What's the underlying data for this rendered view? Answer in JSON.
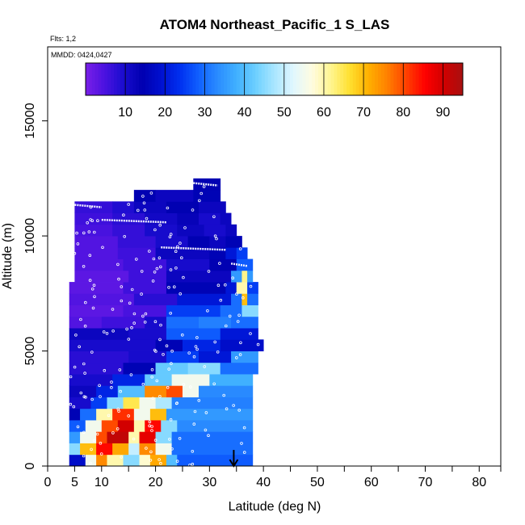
{
  "chart_data": {
    "type": "heatmap",
    "title": "ATOM4 Northeast_Pacific_1 S_LAS",
    "annotations": [
      "Flts: 1,2",
      "MMDD: 0424,0427"
    ],
    "xlabel": "Latitude (deg N)",
    "ylabel": "Altitude (m)",
    "xlim": [
      0,
      84
    ],
    "ylim": [
      0,
      17500
    ],
    "x_ticks": [
      0,
      5,
      10,
      20,
      30,
      40,
      50,
      60,
      70,
      80
    ],
    "x_minor_ticks": [
      15,
      25,
      35,
      45,
      55,
      65,
      75,
      84
    ],
    "y_ticks": [
      0,
      5000,
      10000,
      15000
    ],
    "colorbar": {
      "range": [
        0,
        95
      ],
      "ticks": [
        10,
        20,
        30,
        40,
        50,
        60,
        70,
        80,
        90
      ],
      "colors": [
        "#7a1fe8",
        "#4b12e0",
        "#1a0ccf",
        "#0000b0",
        "#0010d0",
        "#0030f0",
        "#1060ff",
        "#2a8cff",
        "#40b0ff",
        "#6ccfff",
        "#a8e6ff",
        "#e0f6ff",
        "#fffce0",
        "#fff590",
        "#ffe030",
        "#ffb000",
        "#ff8000",
        "#ff4000",
        "#ff0000",
        "#d00000",
        "#a81010"
      ]
    },
    "layers": [
      {
        "alt": [
          0,
          500
        ],
        "cells": [
          [
            4,
            7,
            18
          ],
          [
            7,
            9,
            55
          ],
          [
            9,
            11,
            75
          ],
          [
            11,
            14,
            60
          ],
          [
            14,
            17,
            45
          ],
          [
            17,
            19,
            58
          ],
          [
            19,
            22,
            72
          ],
          [
            22,
            24,
            40
          ],
          [
            24,
            38,
            28
          ]
        ]
      },
      {
        "alt": [
          500,
          1000
        ],
        "cells": [
          [
            4,
            6,
            45
          ],
          [
            6,
            9,
            70
          ],
          [
            9,
            12,
            85
          ],
          [
            12,
            15,
            72
          ],
          [
            15,
            17,
            50
          ],
          [
            17,
            20,
            75
          ],
          [
            20,
            23,
            55
          ],
          [
            23,
            38,
            30
          ]
        ]
      },
      {
        "alt": [
          1000,
          1500
        ],
        "cells": [
          [
            4,
            6,
            35
          ],
          [
            6,
            9,
            55
          ],
          [
            9,
            11,
            80
          ],
          [
            11,
            15,
            92
          ],
          [
            15,
            17,
            60
          ],
          [
            17,
            20,
            88
          ],
          [
            20,
            23,
            45
          ],
          [
            23,
            38,
            30
          ]
        ]
      },
      {
        "alt": [
          1500,
          2000
        ],
        "cells": [
          [
            4,
            7,
            28
          ],
          [
            7,
            10,
            55
          ],
          [
            10,
            13,
            80
          ],
          [
            13,
            16,
            90
          ],
          [
            16,
            18,
            60
          ],
          [
            18,
            21,
            85
          ],
          [
            21,
            24,
            45
          ],
          [
            24,
            38,
            33
          ]
        ]
      },
      {
        "alt": [
          2000,
          2500
        ],
        "cells": [
          [
            4,
            6,
            15
          ],
          [
            6,
            9,
            30
          ],
          [
            9,
            12,
            60
          ],
          [
            12,
            16,
            82
          ],
          [
            16,
            19,
            55
          ],
          [
            19,
            22,
            70
          ],
          [
            22,
            38,
            35
          ]
        ]
      },
      {
        "alt": [
          2500,
          3000
        ],
        "cells": [
          [
            4,
            8,
            10
          ],
          [
            8,
            11,
            25
          ],
          [
            11,
            14,
            45
          ],
          [
            14,
            17,
            65
          ],
          [
            17,
            20,
            55
          ],
          [
            20,
            23,
            48
          ],
          [
            23,
            38,
            32
          ]
        ]
      },
      {
        "alt": [
          3000,
          3500
        ],
        "cells": [
          [
            4,
            9,
            12
          ],
          [
            9,
            13,
            22
          ],
          [
            13,
            18,
            40
          ],
          [
            18,
            22,
            75
          ],
          [
            22,
            25,
            80
          ],
          [
            25,
            28,
            55
          ],
          [
            28,
            38,
            33
          ]
        ]
      },
      {
        "alt": [
          3500,
          4000
        ],
        "cells": [
          [
            4,
            12,
            10
          ],
          [
            12,
            18,
            22
          ],
          [
            18,
            23,
            42
          ],
          [
            23,
            30,
            55
          ],
          [
            30,
            38,
            38
          ]
        ]
      },
      {
        "alt": [
          4000,
          4500
        ],
        "cells": [
          [
            4,
            14,
            8
          ],
          [
            14,
            20,
            15
          ],
          [
            20,
            26,
            42
          ],
          [
            26,
            32,
            45
          ],
          [
            32,
            39,
            30
          ]
        ]
      },
      {
        "alt": [
          4500,
          5000
        ],
        "cells": [
          [
            4,
            15,
            8
          ],
          [
            15,
            22,
            10
          ],
          [
            22,
            28,
            25
          ],
          [
            28,
            34,
            20
          ],
          [
            34,
            39,
            35
          ]
        ]
      },
      {
        "alt": [
          5000,
          5500
        ],
        "cells": [
          [
            4,
            20,
            10
          ],
          [
            20,
            25,
            15
          ],
          [
            25,
            32,
            22
          ],
          [
            32,
            40,
            18
          ]
        ]
      },
      {
        "alt": [
          5500,
          6000
        ],
        "cells": [
          [
            4,
            15,
            12
          ],
          [
            15,
            22,
            10
          ],
          [
            22,
            32,
            28
          ],
          [
            32,
            39,
            20
          ]
        ]
      },
      {
        "alt": [
          6000,
          6500
        ],
        "cells": [
          [
            4,
            10,
            4
          ],
          [
            10,
            18,
            6
          ],
          [
            18,
            22,
            10
          ],
          [
            22,
            28,
            30
          ],
          [
            28,
            34,
            32
          ],
          [
            34,
            39,
            30
          ]
        ]
      },
      {
        "alt": [
          6500,
          7000
        ],
        "cells": [
          [
            4,
            14,
            3
          ],
          [
            14,
            22,
            5
          ],
          [
            22,
            32,
            25
          ],
          [
            32,
            36,
            30
          ],
          [
            36,
            39,
            45
          ]
        ]
      },
      {
        "alt": [
          7000,
          7500
        ],
        "cells": [
          [
            4,
            16,
            4
          ],
          [
            16,
            24,
            8
          ],
          [
            24,
            34,
            20
          ],
          [
            34,
            36,
            30
          ],
          [
            36,
            37,
            70
          ],
          [
            37,
            39,
            30
          ]
        ]
      },
      {
        "alt": [
          7500,
          8000
        ],
        "cells": [
          [
            4,
            14,
            3
          ],
          [
            14,
            22,
            6
          ],
          [
            22,
            33,
            15
          ],
          [
            33,
            35,
            20
          ],
          [
            35,
            37,
            60
          ],
          [
            37,
            39,
            25
          ]
        ]
      },
      {
        "alt": [
          8000,
          8500
        ],
        "cells": [
          [
            5,
            15,
            3
          ],
          [
            15,
            22,
            6
          ],
          [
            22,
            34,
            12
          ],
          [
            34,
            36,
            35
          ],
          [
            36,
            37,
            62
          ],
          [
            37,
            38,
            35
          ]
        ]
      },
      {
        "alt": [
          8500,
          9000
        ],
        "cells": [
          [
            5,
            14,
            4
          ],
          [
            14,
            22,
            6
          ],
          [
            22,
            30,
            10
          ],
          [
            30,
            35,
            14
          ],
          [
            35,
            38,
            28
          ]
        ]
      },
      {
        "alt": [
          9000,
          9500
        ],
        "cells": [
          [
            5,
            13,
            4
          ],
          [
            13,
            20,
            6
          ],
          [
            20,
            30,
            12
          ],
          [
            30,
            33,
            15
          ],
          [
            33,
            35,
            20
          ],
          [
            35,
            37,
            25
          ]
        ]
      },
      {
        "alt": [
          9500,
          10000
        ],
        "cells": [
          [
            5,
            13,
            4
          ],
          [
            13,
            20,
            7
          ],
          [
            20,
            26,
            10
          ],
          [
            26,
            30,
            14
          ],
          [
            30,
            33,
            12
          ],
          [
            33,
            36,
            15
          ]
        ]
      },
      {
        "alt": [
          10000,
          10500
        ],
        "cells": [
          [
            5,
            12,
            5
          ],
          [
            12,
            18,
            7
          ],
          [
            18,
            24,
            10
          ],
          [
            24,
            29,
            12
          ],
          [
            29,
            33,
            10
          ],
          [
            33,
            35,
            12
          ]
        ]
      },
      {
        "alt": [
          10500,
          11000
        ],
        "cells": [
          [
            5,
            12,
            6
          ],
          [
            12,
            18,
            8
          ],
          [
            18,
            24,
            11
          ],
          [
            24,
            28,
            13
          ],
          [
            28,
            32,
            10
          ],
          [
            32,
            34,
            12
          ]
        ]
      },
      {
        "alt": [
          11000,
          11500
        ],
        "cells": [
          [
            5,
            12,
            7
          ],
          [
            12,
            16,
            9
          ],
          [
            16,
            22,
            12
          ],
          [
            22,
            28,
            14
          ],
          [
            28,
            33,
            12
          ]
        ]
      },
      {
        "alt": [
          11500,
          12000
        ],
        "cells": [
          [
            16,
            20,
            14
          ],
          [
            20,
            27,
            12
          ],
          [
            27,
            32,
            15
          ]
        ]
      },
      {
        "alt": [
          12000,
          12500
        ],
        "cells": [
          [
            27,
            32,
            14
          ]
        ]
      }
    ],
    "flight_tracks": [
      {
        "alt": 11350,
        "lat_range": [
          5,
          10
        ]
      },
      {
        "alt": 10700,
        "lat_range": [
          10,
          22
        ]
      },
      {
        "alt": 9500,
        "lat_range": [
          21,
          33
        ]
      },
      {
        "alt": 12300,
        "lat_range": [
          27,
          31.5
        ]
      },
      {
        "alt": 8800,
        "lat_range": [
          34,
          37
        ]
      }
    ],
    "marker": {
      "lat": 34.5,
      "alt_range": [
        0,
        700
      ],
      "shape": "down-arrow"
    }
  }
}
